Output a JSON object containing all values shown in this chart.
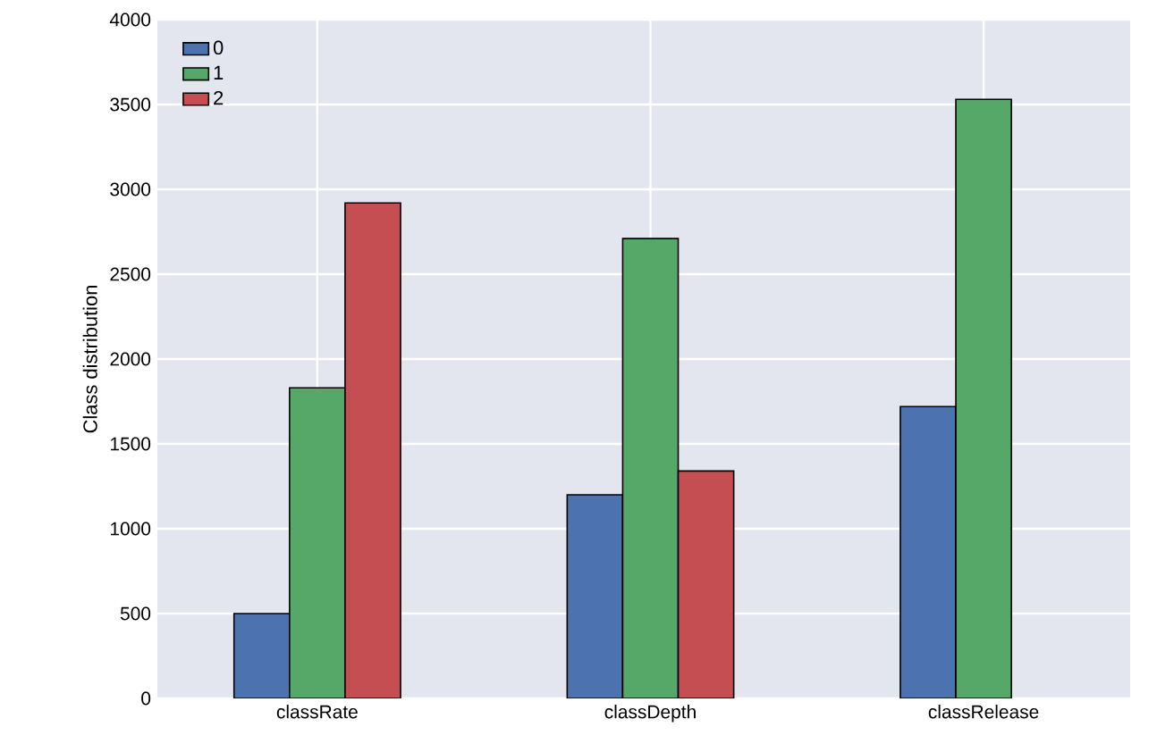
{
  "chart_data": {
    "type": "bar",
    "ylabel": "Class distribution",
    "categories": [
      "classRate",
      "classDepth",
      "classRelease"
    ],
    "series": [
      {
        "name": "0",
        "color": "#4c72b0",
        "values": [
          500,
          1200,
          1720
        ]
      },
      {
        "name": "1",
        "color": "#55a868",
        "values": [
          1830,
          2710,
          3530
        ]
      },
      {
        "name": "2",
        "color": "#c44e52",
        "values": [
          2920,
          1340,
          null
        ]
      }
    ],
    "ylim": [
      0,
      4000
    ],
    "yticks": [
      0,
      500,
      1000,
      1500,
      2000,
      2500,
      3000,
      3500,
      4000
    ],
    "grid": true,
    "legend": "top left"
  }
}
